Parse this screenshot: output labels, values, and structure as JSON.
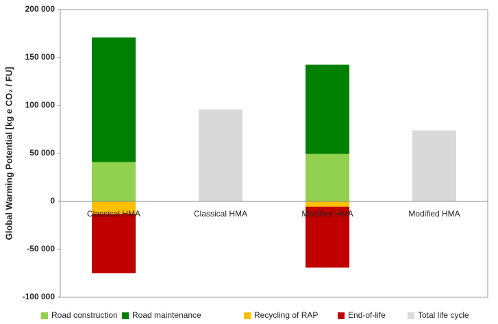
{
  "chart_data": {
    "type": "stacked_bar",
    "y_label": "Global Warming Potential [kg e CO₂ / FU]",
    "categories": [
      "Classical HMA",
      "Classical HMA",
      "Modified HMA",
      "Modified HMA"
    ],
    "series": [
      {
        "name": "Road construction",
        "color": "#92d050",
        "values": [
          41000,
          null,
          49500,
          null
        ]
      },
      {
        "name": "Road maintenance",
        "color": "#008000",
        "values": [
          130000,
          null,
          93000,
          null
        ]
      },
      {
        "name": "Recycling of RAP",
        "color": "#ffc000",
        "values": [
          -13000,
          null,
          -5500,
          null
        ]
      },
      {
        "name": "End-of-life",
        "color": "#c00000",
        "values": [
          -62000,
          null,
          -63500,
          null
        ]
      },
      {
        "name": "Total life cycle",
        "color": "#d9d9d9",
        "values": [
          null,
          96000,
          null,
          74000
        ]
      }
    ],
    "ylim": [
      -100000,
      200000
    ],
    "yticks": [
      {
        "value": -100000,
        "label": "-100 000"
      },
      {
        "value": -50000,
        "label": "-50 000"
      },
      0,
      {
        "value": 50000,
        "label": "50 000"
      },
      {
        "value": 100000,
        "label": "100 000"
      },
      {
        "value": 150000,
        "label": "150 000"
      },
      {
        "value": 200000,
        "label": "200 000"
      }
    ],
    "grid": false,
    "legend": "bottom"
  }
}
